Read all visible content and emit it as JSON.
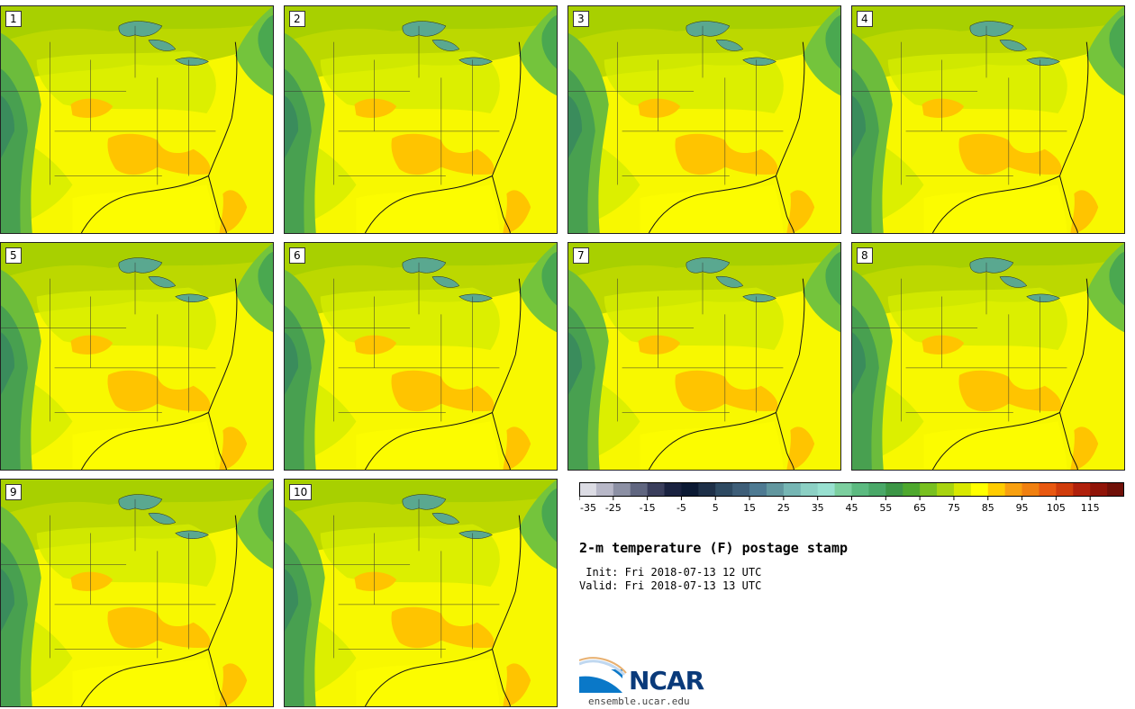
{
  "panels": [
    {
      "label": "1"
    },
    {
      "label": "2"
    },
    {
      "label": "3"
    },
    {
      "label": "4"
    },
    {
      "label": "5"
    },
    {
      "label": "6"
    },
    {
      "label": "7"
    },
    {
      "label": "8"
    },
    {
      "label": "9"
    },
    {
      "label": "10"
    }
  ],
  "colorbar": {
    "colors": [
      "#dcdce4",
      "#b8b8c8",
      "#8c90a4",
      "#606680",
      "#3a3e5c",
      "#1a2240",
      "#0c1a34",
      "#1e3048",
      "#2e4a62",
      "#3e5e78",
      "#4e7a92",
      "#62979f",
      "#76b6b4",
      "#8cd0c4",
      "#98e0d0",
      "#7ccf9f",
      "#5cba80",
      "#4aa868",
      "#3c9646",
      "#4ea82e",
      "#78c020",
      "#a8d410",
      "#d8e800",
      "#ffff00",
      "#ffcc00",
      "#f8a010",
      "#f08010",
      "#e85810",
      "#d03c0c",
      "#b0200c",
      "#901408",
      "#701008"
    ],
    "tick_labels": [
      "-35",
      "-25",
      "-15",
      "-5",
      "5",
      "15",
      "25",
      "35",
      "45",
      "55",
      "65",
      "75",
      "85",
      "95",
      "105",
      "115"
    ]
  },
  "title": "2-m temperature (F) postage stamp",
  "init": " Init: Fri 2018-07-13 12 UTC",
  "valid": "Valid: Fri 2018-07-13 13 UTC",
  "logo": {
    "name": "NCAR",
    "url": "ensemble.ucar.edu"
  }
}
